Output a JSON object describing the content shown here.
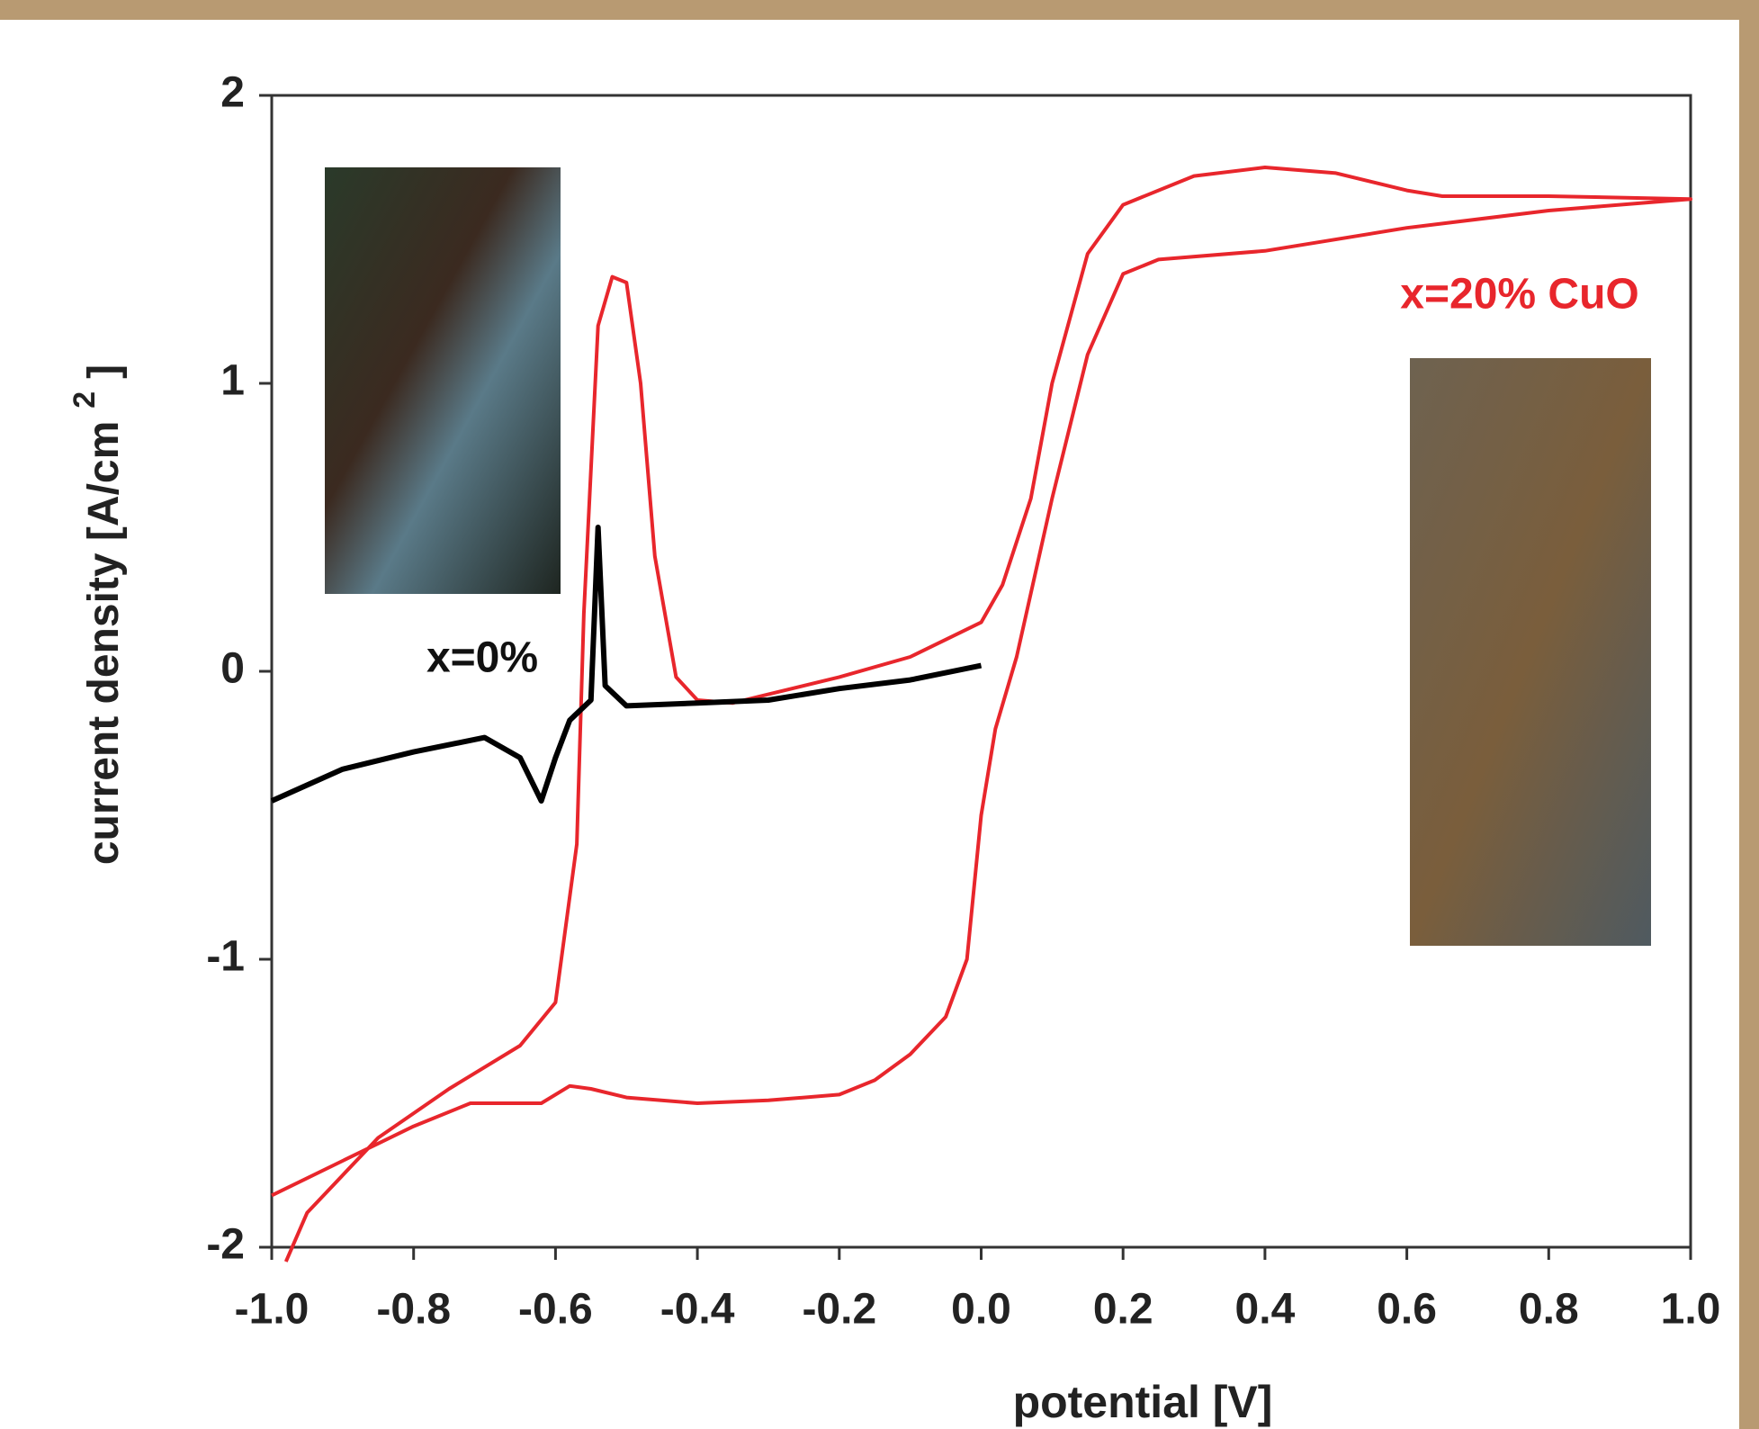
{
  "chart_data": {
    "type": "line",
    "xlabel": "potential [V]",
    "ylabel": [
      "current density [A/cm",
      "2",
      "]"
    ],
    "annotations": [
      {
        "text": "x=20% CuO",
        "color": "#e8262c"
      },
      {
        "text": "x=0%",
        "color": "#111111"
      }
    ],
    "xlim": [
      -1,
      1
    ],
    "xticks": [
      {
        "value": -1,
        "label": "-1.0"
      },
      -0.8,
      -0.6,
      -0.4,
      -0.2,
      {
        "value": 0,
        "label": "0.0"
      },
      0.2,
      0.4,
      0.6,
      0.8,
      {
        "value": 1,
        "label": "1.0"
      }
    ],
    "ylim": [
      -2,
      2
    ],
    "yticks": [
      -2,
      -1,
      0,
      1,
      2
    ],
    "grid": false,
    "series": [
      {
        "color": "#e8262c",
        "x": [
          -1,
          -0.9,
          -0.8,
          -0.72,
          -0.62,
          -0.58,
          -0.55,
          -0.5,
          -0.4,
          -0.3,
          -0.2,
          -0.15,
          -0.1,
          -0.05,
          -0.02,
          0,
          0.02,
          0.05,
          0.1,
          0.15,
          0.2,
          0.25,
          0.4,
          0.6,
          0.8,
          1,
          0.8,
          0.65,
          0.6,
          0.5,
          0.4,
          0.3,
          0.2,
          0.15,
          0.1,
          0.07,
          0.03,
          0,
          -0.1,
          -0.2,
          -0.3,
          -0.35,
          -0.4,
          -0.43,
          -0.46,
          -0.48,
          -0.5,
          -0.52,
          -0.54,
          -0.56,
          -0.57,
          -0.6,
          -0.65,
          -0.75,
          -0.85,
          -0.95,
          -0.98
        ],
        "values": [
          -1.82,
          -1.7,
          -1.58,
          -1.5,
          -1.5,
          -1.44,
          -1.45,
          -1.48,
          -1.5,
          -1.49,
          -1.47,
          -1.42,
          -1.33,
          -1.2,
          -1.0,
          -0.5,
          -0.2,
          0.05,
          0.6,
          1.1,
          1.38,
          1.43,
          1.46,
          1.54,
          1.6,
          1.64,
          1.65,
          1.65,
          1.67,
          1.73,
          1.75,
          1.72,
          1.62,
          1.45,
          1.0,
          0.6,
          0.3,
          0.17,
          0.05,
          -0.02,
          -0.08,
          -0.11,
          -0.1,
          -0.02,
          0.4,
          1.0,
          1.35,
          1.37,
          1.2,
          0.2,
          -0.6,
          -1.15,
          -1.3,
          -1.45,
          -1.62,
          -1.88,
          -2.05
        ]
      },
      {
        "color": "#000000",
        "x": [
          -1,
          -0.9,
          -0.8,
          -0.7,
          -0.65,
          -0.62,
          -0.6,
          -0.58,
          -0.55,
          -0.54,
          -0.53,
          -0.5,
          -0.4,
          -0.3,
          -0.2,
          -0.1,
          0
        ],
        "values": [
          -0.45,
          -0.34,
          -0.28,
          -0.23,
          -0.3,
          -0.45,
          -0.3,
          -0.17,
          -0.1,
          0.5,
          -0.05,
          -0.12,
          -0.11,
          -0.1,
          -0.06,
          -0.03,
          0.02
        ]
      }
    ]
  }
}
